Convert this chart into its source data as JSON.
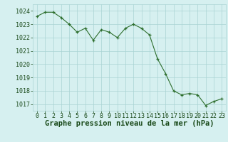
{
  "x": [
    0,
    1,
    2,
    3,
    4,
    5,
    6,
    7,
    8,
    9,
    10,
    11,
    12,
    13,
    14,
    15,
    16,
    17,
    18,
    19,
    20,
    21,
    22,
    23
  ],
  "y": [
    1023.6,
    1023.9,
    1023.9,
    1023.5,
    1023.0,
    1022.4,
    1022.7,
    1021.8,
    1022.6,
    1022.4,
    1022.0,
    1022.7,
    1023.0,
    1022.7,
    1022.2,
    1020.4,
    1019.3,
    1018.0,
    1017.7,
    1017.8,
    1017.7,
    1016.9,
    1017.2,
    1017.4
  ],
  "line_color": "#2d6e2d",
  "marker_color": "#2d6e2d",
  "bg_color": "#d6f0f0",
  "grid_color": "#aad4d4",
  "xlabel": "Graphe pression niveau de la mer (hPa)",
  "xlabel_color": "#1a4a1a",
  "xlabel_fontsize": 7.5,
  "tick_color": "#1a4a1a",
  "tick_fontsize": 6.0,
  "ylim": [
    1016.5,
    1024.5
  ],
  "yticks": [
    1017,
    1018,
    1019,
    1020,
    1021,
    1022,
    1023,
    1024
  ],
  "xlim": [
    -0.5,
    23.5
  ],
  "xticks": [
    0,
    1,
    2,
    3,
    4,
    5,
    6,
    7,
    8,
    9,
    10,
    11,
    12,
    13,
    14,
    15,
    16,
    17,
    18,
    19,
    20,
    21,
    22,
    23
  ]
}
